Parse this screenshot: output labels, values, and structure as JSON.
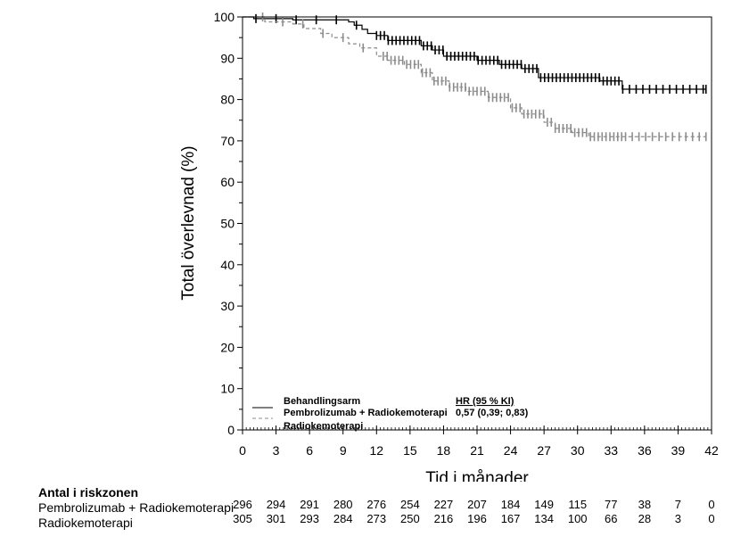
{
  "chart_data": {
    "type": "line",
    "subtype": "kaplan-meier",
    "title": "",
    "xlabel": "Tid i månader",
    "ylabel": "Total överlevnad (%)",
    "xlim": [
      0,
      42
    ],
    "ylim": [
      0,
      100
    ],
    "xticks": [
      "0",
      "3",
      "6",
      "9",
      "12",
      "15",
      "18",
      "21",
      "24",
      "27",
      "30",
      "33",
      "36",
      "39",
      "42"
    ],
    "yticks": [
      "0",
      "10",
      "20",
      "30",
      "40",
      "50",
      "60",
      "70",
      "80",
      "90",
      "100"
    ],
    "grid": false,
    "legend": {
      "placement": "bottom-left",
      "header": "Behandlingsarm",
      "hr_header": "HR (95 % KI)",
      "hr_value": "0,57 (0,39; 0,83)"
    },
    "series": [
      {
        "name": "Pembrolizumab + Radiokemoterapi",
        "color": "#000000",
        "style": "solid",
        "x": [
          0,
          1,
          4.5,
          9.5,
          10,
          10.7,
          11.2,
          12,
          13,
          16,
          17,
          18,
          21,
          23,
          25,
          26.5,
          32,
          34,
          41.5
        ],
        "y": [
          100,
          99.6,
          99.3,
          98.8,
          98,
          97,
          96,
          95.5,
          94.3,
          93,
          92,
          90.5,
          89.5,
          88.5,
          87.5,
          85.3,
          84.5,
          82.5,
          82.5
        ]
      },
      {
        "name": "Radiokemoterapi",
        "color": "#8c8c8c",
        "style": "dashed",
        "x": [
          0,
          2,
          4.5,
          5.5,
          7,
          8,
          9.5,
          10.5,
          12,
          13,
          14.5,
          16,
          17,
          18.5,
          20,
          22,
          24,
          25,
          27,
          28,
          29.5,
          31,
          41.5
        ],
        "y": [
          100,
          98.8,
          98.3,
          97.2,
          96,
          95,
          93.5,
          92.5,
          90.5,
          89.5,
          88.5,
          86.5,
          84.5,
          83,
          82,
          80.5,
          78,
          76.5,
          74.5,
          73,
          72,
          71,
          71
        ]
      }
    ],
    "risk_table": {
      "title": "Antal i riskzonen",
      "times": [
        0,
        3,
        6,
        9,
        12,
        15,
        18,
        21,
        24,
        27,
        30,
        33,
        36,
        39,
        42
      ],
      "rows": [
        {
          "label": "Pembrolizumab + Radiokemoterapi",
          "values": [
            "296",
            "294",
            "291",
            "280",
            "276",
            "254",
            "227",
            "207",
            "184",
            "149",
            "115",
            "77",
            "38",
            "7",
            "0"
          ]
        },
        {
          "label": "Radiokemoterapi",
          "values": [
            "305",
            "301",
            "293",
            "284",
            "273",
            "250",
            "216",
            "196",
            "167",
            "134",
            "100",
            "66",
            "28",
            "3",
            "0"
          ]
        }
      ]
    }
  }
}
